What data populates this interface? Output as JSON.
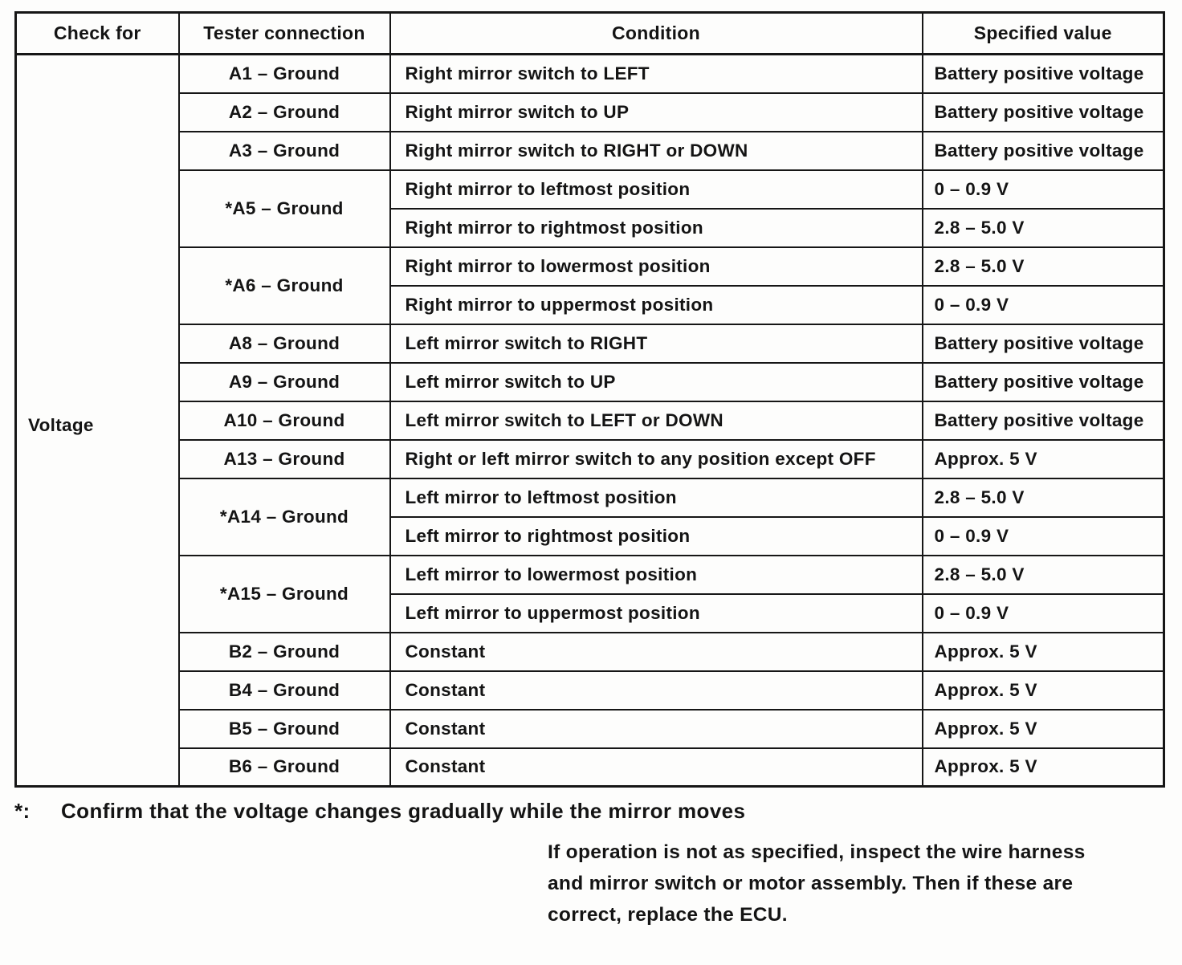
{
  "table": {
    "headers": [
      "Check for",
      "Tester connection",
      "Condition",
      "Specified value"
    ],
    "check_for": "Voltage",
    "groups": [
      {
        "connection": "A1 – Ground",
        "rows": [
          {
            "condition": "Right mirror switch to LEFT",
            "value": "Battery positive voltage"
          }
        ]
      },
      {
        "connection": "A2 – Ground",
        "rows": [
          {
            "condition": "Right mirror switch to UP",
            "value": "Battery positive voltage"
          }
        ]
      },
      {
        "connection": "A3 – Ground",
        "rows": [
          {
            "condition": "Right mirror switch to RIGHT or DOWN",
            "value": "Battery positive voltage"
          }
        ]
      },
      {
        "connection": "*A5 – Ground",
        "rows": [
          {
            "condition": "Right mirror to leftmost position",
            "value": "0 – 0.9 V"
          },
          {
            "condition": "Right mirror to rightmost position",
            "value": "2.8 – 5.0 V"
          }
        ]
      },
      {
        "connection": "*A6 – Ground",
        "rows": [
          {
            "condition": "Right mirror to lowermost position",
            "value": "2.8 – 5.0 V"
          },
          {
            "condition": "Right mirror to uppermost position",
            "value": "0 – 0.9 V"
          }
        ]
      },
      {
        "connection": "A8 – Ground",
        "rows": [
          {
            "condition": "Left mirror switch to RIGHT",
            "value": "Battery positive voltage"
          }
        ]
      },
      {
        "connection": "A9 – Ground",
        "rows": [
          {
            "condition": "Left mirror switch to UP",
            "value": "Battery positive voltage"
          }
        ]
      },
      {
        "connection": "A10 – Ground",
        "rows": [
          {
            "condition": "Left mirror switch to LEFT or DOWN",
            "value": "Battery positive voltage"
          }
        ]
      },
      {
        "connection": "A13 – Ground",
        "rows": [
          {
            "condition": "Right or left mirror switch to any position except OFF",
            "value": "Approx. 5 V"
          }
        ]
      },
      {
        "connection": "*A14 – Ground",
        "rows": [
          {
            "condition": "Left mirror to leftmost position",
            "value": "2.8 – 5.0 V"
          },
          {
            "condition": "Left mirror to rightmost position",
            "value": "0 – 0.9 V"
          }
        ]
      },
      {
        "connection": "*A15 – Ground",
        "rows": [
          {
            "condition": "Left mirror to lowermost position",
            "value": "2.8 – 5.0 V"
          },
          {
            "condition": "Left mirror to uppermost position",
            "value": "0 – 0.9 V"
          }
        ]
      },
      {
        "connection": "B2 – Ground",
        "rows": [
          {
            "condition": "Constant",
            "value": "Approx. 5 V"
          }
        ]
      },
      {
        "connection": "B4 – Ground",
        "rows": [
          {
            "condition": "Constant",
            "value": "Approx. 5 V"
          }
        ]
      },
      {
        "connection": "B5 – Ground",
        "rows": [
          {
            "condition": "Constant",
            "value": "Approx. 5 V"
          }
        ]
      },
      {
        "connection": "B6 – Ground",
        "rows": [
          {
            "condition": "Constant",
            "value": "Approx. 5 V"
          }
        ]
      }
    ]
  },
  "footnote": {
    "marker": "*:",
    "text": "Confirm that the voltage changes gradually while the mirror moves"
  },
  "instruction": {
    "lines": [
      "If operation is not as specified, inspect the wire harness",
      "and mirror switch or motor assembly. Then if these are",
      "correct, replace the ECU."
    ]
  }
}
